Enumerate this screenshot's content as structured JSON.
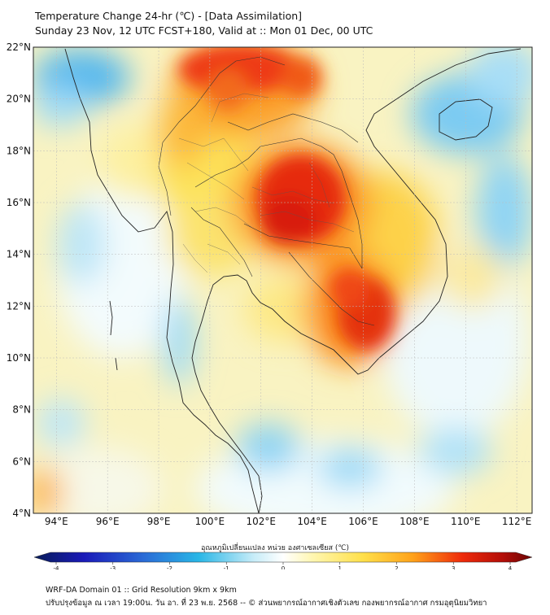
{
  "header": {
    "title_line1": "Temperature Change 24-hr (℃) - [Data Assimilation]",
    "title_line2": "Sunday 23 Nov, 12 UTC FCST+180, Valid at :: Mon 01 Dec, 00 UTC"
  },
  "map": {
    "lat_labels": [
      "22°N",
      "20°N",
      "18°N",
      "16°N",
      "14°N",
      "12°N",
      "10°N",
      "8°N",
      "6°N",
      "4°N"
    ],
    "lon_labels": [
      "94°E",
      "96°E",
      "98°E",
      "100°E",
      "102°E",
      "104°E",
      "106°E",
      "108°E",
      "110°E",
      "112°E"
    ],
    "lat_range": [
      4,
      22
    ],
    "lon_range": [
      93.1,
      112.6
    ],
    "field_unit": "℃",
    "warm_centers": [
      {
        "name": "northeast-thailand-laos",
        "lon": 103.0,
        "lat": 15.8,
        "value": 3.6
      },
      {
        "name": "cambodia-mekong",
        "lon": 106.0,
        "lat": 11.4,
        "value": 3.5
      },
      {
        "name": "northern-laos-yunnan",
        "lon": 102.0,
        "lat": 21.6,
        "value": 3.4
      },
      {
        "name": "northern-thailand",
        "lon": 100.0,
        "lat": 18.5,
        "value": 2.0
      }
    ],
    "cool_centers": [
      {
        "name": "hainan",
        "lon": 110.0,
        "lat": 19.6,
        "value": -1.4
      },
      {
        "name": "bay-of-bengal-north",
        "lon": 95.0,
        "lat": 20.5,
        "value": -1.3
      },
      {
        "name": "south-china-sea",
        "lon": 110.5,
        "lat": 15.5,
        "value": -0.9
      },
      {
        "name": "andaman-sea",
        "lon": 96.0,
        "lat": 13.0,
        "value": -0.7
      },
      {
        "name": "gulf-of-thailand-south",
        "lon": 102.0,
        "lat": 7.5,
        "value": -0.7
      }
    ]
  },
  "colorbar": {
    "title": "อุณหภูมิเปลี่ยนแปลง หน่วย องศาเซลเซียส (℃)",
    "ticks": [
      "-4",
      "-3",
      "-2",
      "-1",
      "0",
      "1",
      "2",
      "3",
      "4"
    ],
    "min": -4,
    "max": 4
  },
  "footer": {
    "line1": "WRF-DA Domain 01 :: Grid Resolution 9km x 9km",
    "line2": "ปรับปรุงข้อมูล ณ เวลา 19:00น. วัน อา. ที่ 23 พ.ย. 2568 -- © ส่วนพยากรณ์อากาศเชิงตัวเลข กองพยากรณ์อากาศ กรมอุตุนิยมวิทยา"
  }
}
